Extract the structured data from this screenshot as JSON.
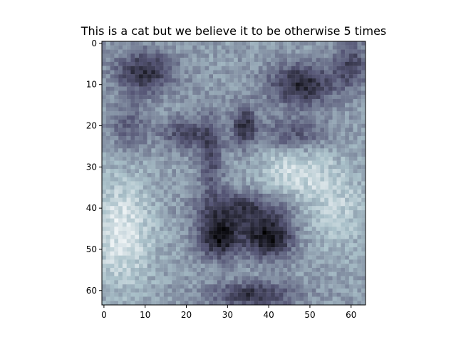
{
  "chart_data": {
    "type": "heatmap",
    "title": "This is a cat but we believe it to be otherwise 5 times",
    "xlabel": "",
    "ylabel": "",
    "image_size": [
      64,
      64
    ],
    "colormap": "bone",
    "colors": {
      "dark": "#1c1c30",
      "mid": "#7f8fa0",
      "light": "#eef3f2"
    },
    "xlim": [
      0,
      63
    ],
    "ylim": [
      63,
      0
    ],
    "x_ticks": [
      {
        "value": 0,
        "label": "0"
      },
      {
        "value": 10,
        "label": "10"
      },
      {
        "value": 20,
        "label": "20"
      },
      {
        "value": 30,
        "label": "30"
      },
      {
        "value": 40,
        "label": "40"
      },
      {
        "value": 50,
        "label": "50"
      },
      {
        "value": 60,
        "label": "60"
      }
    ],
    "y_ticks": [
      {
        "value": 0,
        "label": "0"
      },
      {
        "value": 10,
        "label": "10"
      },
      {
        "value": 20,
        "label": "20"
      },
      {
        "value": 30,
        "label": "30"
      },
      {
        "value": 40,
        "label": "40"
      },
      {
        "value": 50,
        "label": "50"
      },
      {
        "value": 60,
        "label": "60"
      }
    ],
    "grid": false,
    "content_description_icon": "cat-face-image"
  }
}
